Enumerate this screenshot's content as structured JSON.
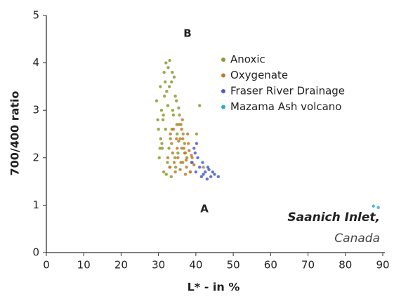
{
  "chart_data": {
    "type": "scatter",
    "xlabel": "L* - in %",
    "ylabel": "700/400 ratio",
    "annotations": [
      "B",
      "A",
      "Saanich Inlet,",
      "Canada"
    ],
    "xlim": [
      0,
      90
    ],
    "xticks": [
      0,
      10,
      20,
      30,
      40,
      50,
      60,
      70,
      80,
      90
    ],
    "ylim": [
      0,
      5
    ],
    "yticks": [
      0,
      1,
      2,
      3,
      4,
      5
    ],
    "grid": false,
    "legend": "upper right",
    "series": [
      {
        "name": "Anoxic",
        "color": "#8c9a2e",
        "x": [
          29.5,
          30,
          30.5,
          31,
          31.5,
          32,
          32.5,
          33,
          33.5,
          34,
          34.5,
          35,
          30.2,
          31.2,
          32.2,
          33.2,
          34.2,
          35.2,
          36,
          36.5,
          37,
          30.8,
          31.8,
          32.8,
          33.8,
          34.8,
          35.8,
          29.8,
          30.6,
          31.6,
          32.6,
          33.6,
          34.6,
          35.6,
          36.6,
          37.6,
          38.5,
          31.4,
          32.4,
          33.4,
          34.4,
          32.9,
          33.7,
          31.9,
          30.4,
          34.9,
          36.2,
          37.2,
          38.8,
          40.2,
          41,
          42,
          32.1,
          33.1,
          31.3,
          35.4,
          30.9
        ],
        "values": [
          3.2,
          2.6,
          3.5,
          2.2,
          3.8,
          4.0,
          3.1,
          4.05,
          3.6,
          2.9,
          3.3,
          2.5,
          2.0,
          2.8,
          3.4,
          2.4,
          3.7,
          2.1,
          2.7,
          1.9,
          2.3,
          3.0,
          3.6,
          2.2,
          3.0,
          3.2,
          2.4,
          2.8,
          2.4,
          3.3,
          3.9,
          2.6,
          1.8,
          2.9,
          2.5,
          2.0,
          1.7,
          1.7,
          1.9,
          1.6,
          2.0,
          3.5,
          3.8,
          2.6,
          2.2,
          2.7,
          2.2,
          2.1,
          1.9,
          2.5,
          3.1,
          1.8,
          1.65,
          1.8,
          2.9,
          3.05,
          2.3
        ]
      },
      {
        "name": "Oxygenate",
        "color": "#c8772a",
        "x": [
          32.5,
          33,
          33.5,
          34,
          34.5,
          35,
          35.5,
          36,
          36.5,
          37,
          37.5,
          38,
          38.5,
          39,
          33.2,
          34.2,
          35.2,
          36.2,
          37.2,
          38.2,
          34.8,
          35.8,
          36.8,
          37.8,
          33.8,
          36.4,
          35.4,
          37.4,
          38.8,
          39.5
        ],
        "values": [
          2.0,
          1.8,
          2.3,
          2.6,
          1.7,
          2.2,
          2.7,
          1.9,
          2.4,
          2.1,
          1.8,
          2.3,
          1.7,
          2.0,
          2.5,
          1.9,
          2.0,
          2.6,
          1.65,
          2.15,
          2.4,
          1.75,
          2.2,
          2.5,
          2.1,
          2.8,
          2.35,
          1.95,
          2.05,
          1.85
        ]
      },
      {
        "name": "Fraser River Drainage",
        "color": "#4a5bd0",
        "x": [
          39,
          39.5,
          40,
          40.5,
          41,
          41.5,
          42,
          42.5,
          43,
          43.5,
          44,
          44.5,
          45,
          46,
          40.2,
          41.8,
          43.2,
          39.8
        ],
        "values": [
          1.9,
          2.2,
          1.7,
          2.0,
          1.8,
          1.6,
          1.65,
          1.7,
          1.55,
          1.75,
          1.6,
          1.7,
          1.65,
          1.6,
          2.3,
          1.9,
          1.8,
          2.1
        ]
      },
      {
        "name": "Mazama Ash volcano",
        "color": "#2ab0c8",
        "x": [
          87.5,
          88.8
        ],
        "values": [
          0.98,
          0.95
        ]
      }
    ]
  }
}
